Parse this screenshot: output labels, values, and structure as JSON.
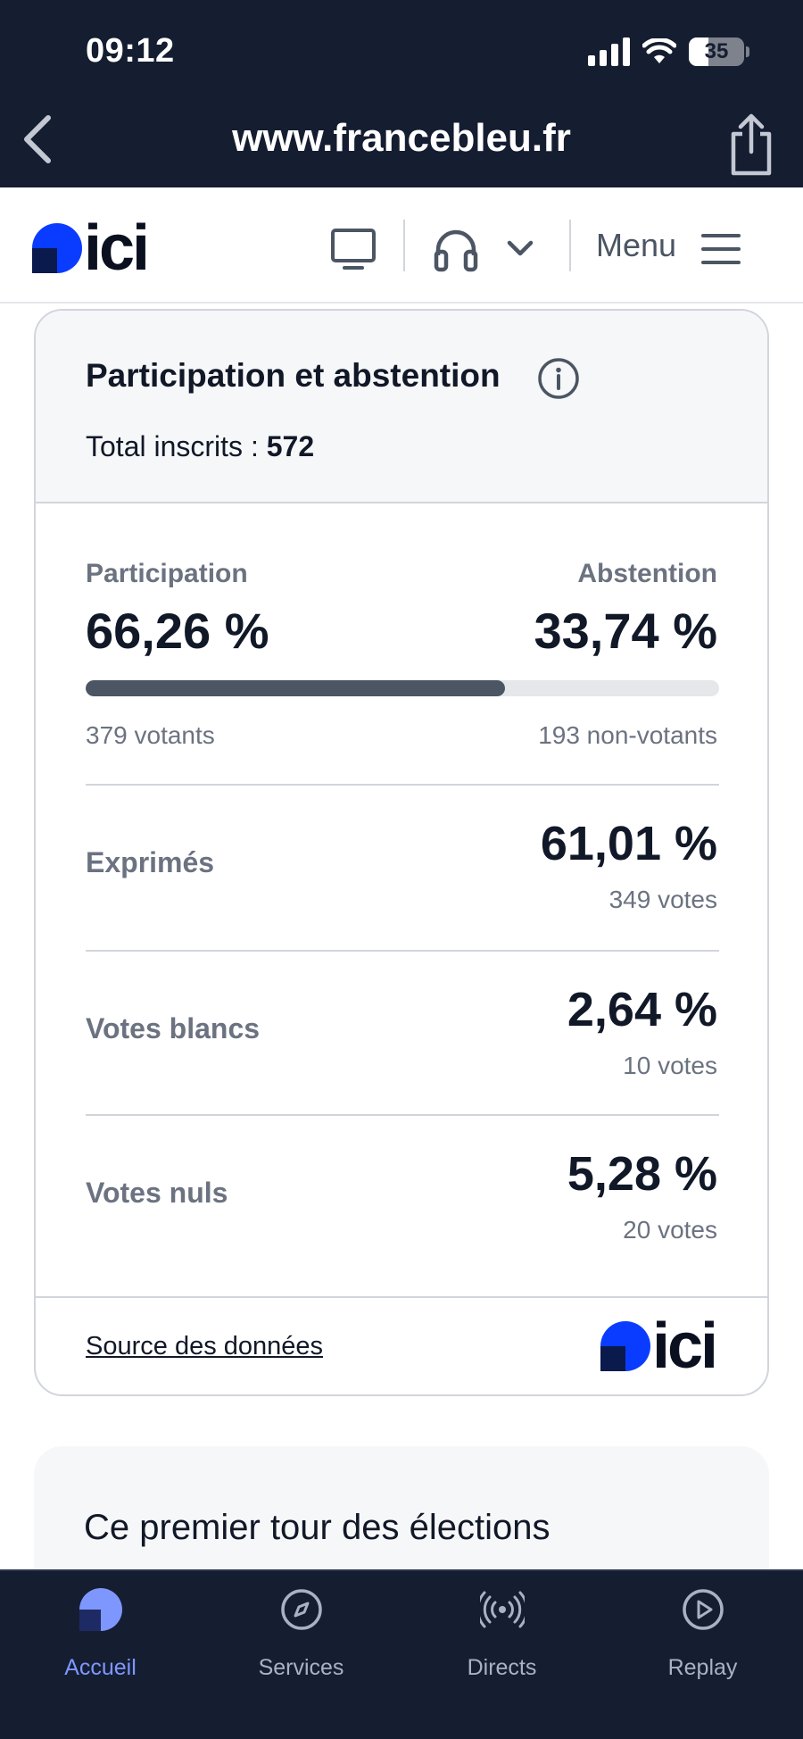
{
  "status_bar": {
    "time": "09:12",
    "battery": "35"
  },
  "browser": {
    "url": "www.francebleu.fr"
  },
  "header": {
    "logo_text": "ici",
    "menu_label": "Menu"
  },
  "card": {
    "title": "Participation et abstention",
    "total_label": "Total inscrits :",
    "total_value": "572",
    "participation": {
      "label": "Participation",
      "value": "66,26 %",
      "sub": "379 votants",
      "fraction": 0.6626
    },
    "abstention": {
      "label": "Abstention",
      "value": "33,74 %",
      "sub": "193 non-votants"
    },
    "rows": [
      {
        "label": "Exprimés",
        "value": "61,01 %",
        "sub": "349 votes"
      },
      {
        "label": "Votes blancs",
        "value": "2,64 %",
        "sub": "10 votes"
      },
      {
        "label": "Votes nuls",
        "value": "5,28 %",
        "sub": "20 votes"
      }
    ],
    "source_label": "Source des données",
    "footer_logo_text": "ici"
  },
  "teaser": {
    "text": "Ce premier tour des élections"
  },
  "tabbar": {
    "tabs": [
      {
        "label": "Accueil",
        "icon": "home-logo-icon",
        "active": true
      },
      {
        "label": "Services",
        "icon": "compass-icon",
        "active": false
      },
      {
        "label": "Directs",
        "icon": "broadcast-icon",
        "active": false
      },
      {
        "label": "Replay",
        "icon": "play-circle-icon",
        "active": false
      }
    ]
  },
  "colors": {
    "dark_bar": "#151d31",
    "accent_blue": "#0a3cff",
    "active_tab": "#7e97ff",
    "progress_fill": "#4b5563"
  }
}
